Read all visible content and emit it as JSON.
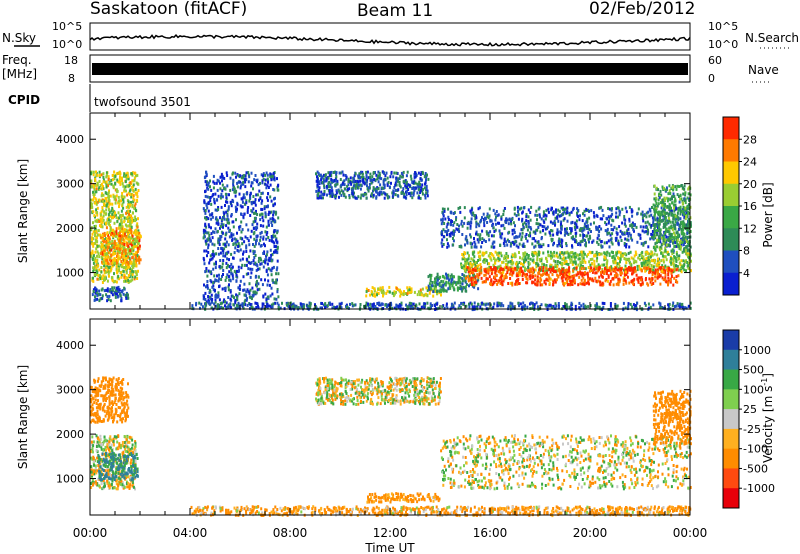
{
  "header": {
    "station": "Saskatoon (fitACF)",
    "beam": "Beam 11",
    "date": "02/Feb/2012"
  },
  "top_panels": {
    "nsky_label": "N.Sky",
    "nsky_ticks": [
      "10^5",
      "10^0"
    ],
    "nsearch_label": "N.Search",
    "freq_label_1": "Freq.",
    "freq_label_2": "[MHz]",
    "freq_ticks": [
      "18",
      "8"
    ],
    "freq_right_ticks": [
      "60",
      "0"
    ],
    "nave_label": "Nave",
    "cpid_label": "CPID",
    "cpid_value": "twofsound 3501"
  },
  "power_panel": {
    "ylabel": "Slant Range [km]",
    "colorbar_label": "Power [dB]",
    "colorbar_ticks": [
      "28",
      "24",
      "20",
      "16",
      "12",
      "8",
      "4"
    ],
    "colorbar_colors": [
      "#ff2a00",
      "#ff7a00",
      "#ffc800",
      "#9acd32",
      "#3aa845",
      "#2e8b57",
      "#1f4fbf",
      "#0a1fd0"
    ]
  },
  "velocity_panel": {
    "ylabel": "Slant Range [km]",
    "colorbar_label": "Velocity [m s",
    "colorbar_sup": "-1",
    "colorbar_label_end": "]",
    "colorbar_ticks": [
      "1000",
      "500",
      "100",
      "25",
      "-25",
      "-100",
      "-500",
      "-1000"
    ],
    "colorbar_colors": [
      "#1a3ca8",
      "#2f7f9a",
      "#38a845",
      "#7fcf4f",
      "#c8c8c8",
      "#ffb020",
      "#ff8c00",
      "#ff4a10",
      "#e8000a"
    ]
  },
  "xaxis": {
    "label": "Time UT",
    "ticks": [
      "00:00",
      "04:00",
      "08:00",
      "12:00",
      "16:00",
      "20:00",
      "00:00"
    ]
  },
  "chart_data": [
    {
      "type": "heatmap",
      "title": "Saskatoon (fitACF) Beam 11 02/Feb/2012",
      "variable": "Power",
      "units": "dB",
      "xlabel": "Time UT",
      "ylabel": "Slant Range [km]",
      "xlim_hours": [
        0,
        24
      ],
      "ylim_km": [
        180,
        4590
      ],
      "yticks": [
        1000,
        2000,
        3000,
        4000
      ],
      "colorbar_range": [
        0,
        30
      ],
      "regions": [
        {
          "t0": 0.0,
          "t1": 1.9,
          "r0": 800,
          "r1": 3300,
          "value": 18
        },
        {
          "t0": 0.4,
          "t1": 2.0,
          "r0": 1200,
          "r1": 2000,
          "value": 22
        },
        {
          "t0": 0.0,
          "t1": 1.5,
          "r0": 400,
          "r1": 700,
          "value": 6
        },
        {
          "t0": 4.5,
          "t1": 7.5,
          "r0": 300,
          "r1": 3300,
          "value": 5
        },
        {
          "t0": 4.0,
          "t1": 24.0,
          "r0": 200,
          "r1": 350,
          "value": 6
        },
        {
          "t0": 9.0,
          "t1": 13.5,
          "r0": 2700,
          "r1": 3300,
          "value": 6
        },
        {
          "t0": 11.0,
          "t1": 14.0,
          "r0": 500,
          "r1": 700,
          "value": 18
        },
        {
          "t0": 13.5,
          "t1": 15.5,
          "r0": 600,
          "r1": 1000,
          "value": 10
        },
        {
          "t0": 14.0,
          "t1": 24.0,
          "r0": 1600,
          "r1": 2500,
          "value": 6
        },
        {
          "t0": 14.8,
          "t1": 24.0,
          "r0": 1050,
          "r1": 1500,
          "value": 16
        },
        {
          "t0": 15.0,
          "t1": 23.5,
          "r0": 750,
          "r1": 1150,
          "value": 27
        },
        {
          "t0": 22.5,
          "t1": 24.0,
          "r0": 1500,
          "r1": 3000,
          "value": 12
        }
      ]
    },
    {
      "type": "heatmap",
      "variable": "Velocity",
      "units": "m s^-1",
      "xlabel": "Time UT",
      "ylabel": "Slant Range [km]",
      "xlim_hours": [
        0,
        24
      ],
      "ylim_km": [
        180,
        4590
      ],
      "yticks": [
        1000,
        2000,
        3000,
        4000
      ],
      "colorbar_range": [
        -1000,
        1000
      ],
      "regions": [
        {
          "t0": 0.0,
          "t1": 1.8,
          "r0": 800,
          "r1": 2000,
          "value": 0
        },
        {
          "t0": 0.3,
          "t1": 1.9,
          "r0": 1000,
          "r1": 1600,
          "value": 600
        },
        {
          "t0": 0.0,
          "t1": 1.5,
          "r0": 2300,
          "r1": 3300,
          "value": -300
        },
        {
          "t0": 4.0,
          "t1": 24.0,
          "r0": 200,
          "r1": 400,
          "value": -150
        },
        {
          "t0": 9.0,
          "t1": 14.0,
          "r0": 2700,
          "r1": 3300,
          "value": 0
        },
        {
          "t0": 11.0,
          "t1": 14.0,
          "r0": 500,
          "r1": 700,
          "value": -200
        },
        {
          "t0": 14.0,
          "t1": 24.0,
          "r0": 800,
          "r1": 2000,
          "value": 0
        },
        {
          "t0": 22.5,
          "t1": 24.0,
          "r0": 1800,
          "r1": 3000,
          "value": -300
        }
      ]
    }
  ]
}
